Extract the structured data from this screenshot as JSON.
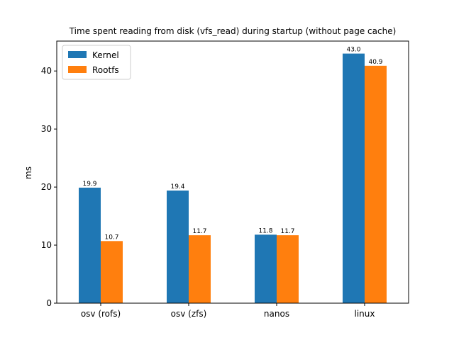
{
  "chart_data": {
    "type": "bar",
    "title": "Time spent reading from disk (vfs_read) during startup (without page cache)",
    "xlabel": "",
    "ylabel": "ms",
    "categories": [
      "osv (rofs)",
      "osv (zfs)",
      "nanos",
      "linux"
    ],
    "series": [
      {
        "name": "Kernel",
        "values": [
          19.9,
          19.4,
          11.8,
          43.0
        ],
        "color": "#1f77b4"
      },
      {
        "name": "Rootfs",
        "values": [
          10.7,
          11.7,
          11.7,
          40.9
        ],
        "color": "#ff7f0e"
      }
    ],
    "data_labels": [
      [
        "19.9",
        "19.4",
        "11.8",
        "43.0"
      ],
      [
        "10.7",
        "11.7",
        "11.7",
        "40.9"
      ]
    ],
    "ylim": [
      0,
      45.15
    ],
    "yticks": [
      0,
      10,
      20,
      30,
      40
    ],
    "ytick_labels": [
      "0",
      "10",
      "20",
      "30",
      "40"
    ],
    "grid": false,
    "legend_position": "top-left"
  }
}
